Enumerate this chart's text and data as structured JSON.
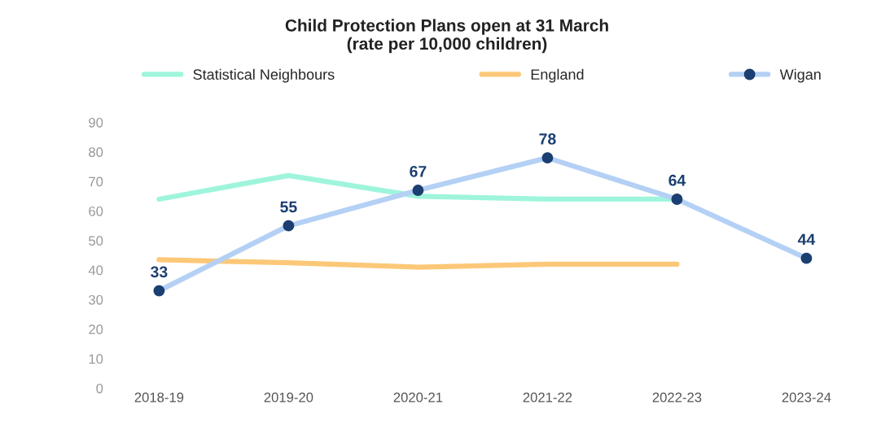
{
  "chart_data": {
    "type": "line",
    "title": "Child Protection Plans open at 31 March\n(rate per 10,000 children)",
    "categories": [
      "2018-19",
      "2019-20",
      "2020-21",
      "2021-22",
      "2022-23",
      "2023-24"
    ],
    "series": [
      {
        "name": "Statistical Neighbours",
        "color": "#9ff5dc",
        "values": [
          64,
          72,
          65,
          64,
          64,
          null
        ],
        "marker": "none"
      },
      {
        "name": "England",
        "color": "#fcc878",
        "values": [
          43.5,
          42.5,
          41,
          42,
          42,
          null
        ],
        "marker": "none"
      },
      {
        "name": "Wigan",
        "color": "#b4d0f5",
        "colors": [
          "#1b3f70",
          "#1b3f70",
          "#1b3f70",
          "#1b3f70",
          "#1b3f70",
          "#1b3f70"
        ],
        "marker": "circle",
        "values": [
          33,
          55,
          67,
          78,
          64,
          44
        ],
        "value_labels": [
          "33",
          "55",
          "67",
          "78",
          "64",
          "44"
        ]
      }
    ],
    "ylim": [
      0,
      90
    ],
    "yticks": [
      0,
      10,
      20,
      30,
      40,
      50,
      60,
      70,
      80,
      90
    ],
    "grid": false,
    "legend": "top"
  }
}
